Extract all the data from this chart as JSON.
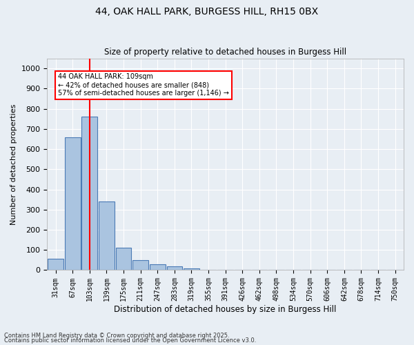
{
  "title1": "44, OAK HALL PARK, BURGESS HILL, RH15 0BX",
  "title2": "Size of property relative to detached houses in Burgess Hill",
  "xlabel": "Distribution of detached houses by size in Burgess Hill",
  "ylabel": "Number of detached properties",
  "footnote1": "Contains HM Land Registry data © Crown copyright and database right 2025.",
  "footnote2": "Contains public sector information licensed under the Open Government Licence v3.0.",
  "bins": [
    "31sqm",
    "67sqm",
    "103sqm",
    "139sqm",
    "175sqm",
    "211sqm",
    "247sqm",
    "283sqm",
    "319sqm",
    "355sqm",
    "391sqm",
    "426sqm",
    "462sqm",
    "498sqm",
    "534sqm",
    "570sqm",
    "606sqm",
    "642sqm",
    "678sqm",
    "714sqm",
    "750sqm"
  ],
  "bar_values": [
    55,
    660,
    760,
    340,
    110,
    50,
    28,
    18,
    8,
    2,
    0,
    0,
    0,
    0,
    0,
    0,
    0,
    0,
    0,
    0,
    0
  ],
  "bar_color": "#aac4e0",
  "bar_edge_color": "#4a7ab5",
  "vline_x": 2.0,
  "vline_color": "red",
  "annotation_text": "44 OAK HALL PARK: 109sqm\n← 42% of detached houses are smaller (848)\n57% of semi-detached houses are larger (1,146) →",
  "annotation_box_color": "white",
  "annotation_box_edge": "red",
  "ylim": [
    0,
    1050
  ],
  "yticks": [
    0,
    100,
    200,
    300,
    400,
    500,
    600,
    700,
    800,
    900,
    1000
  ],
  "bg_color": "#e8eef4",
  "grid_color": "white"
}
